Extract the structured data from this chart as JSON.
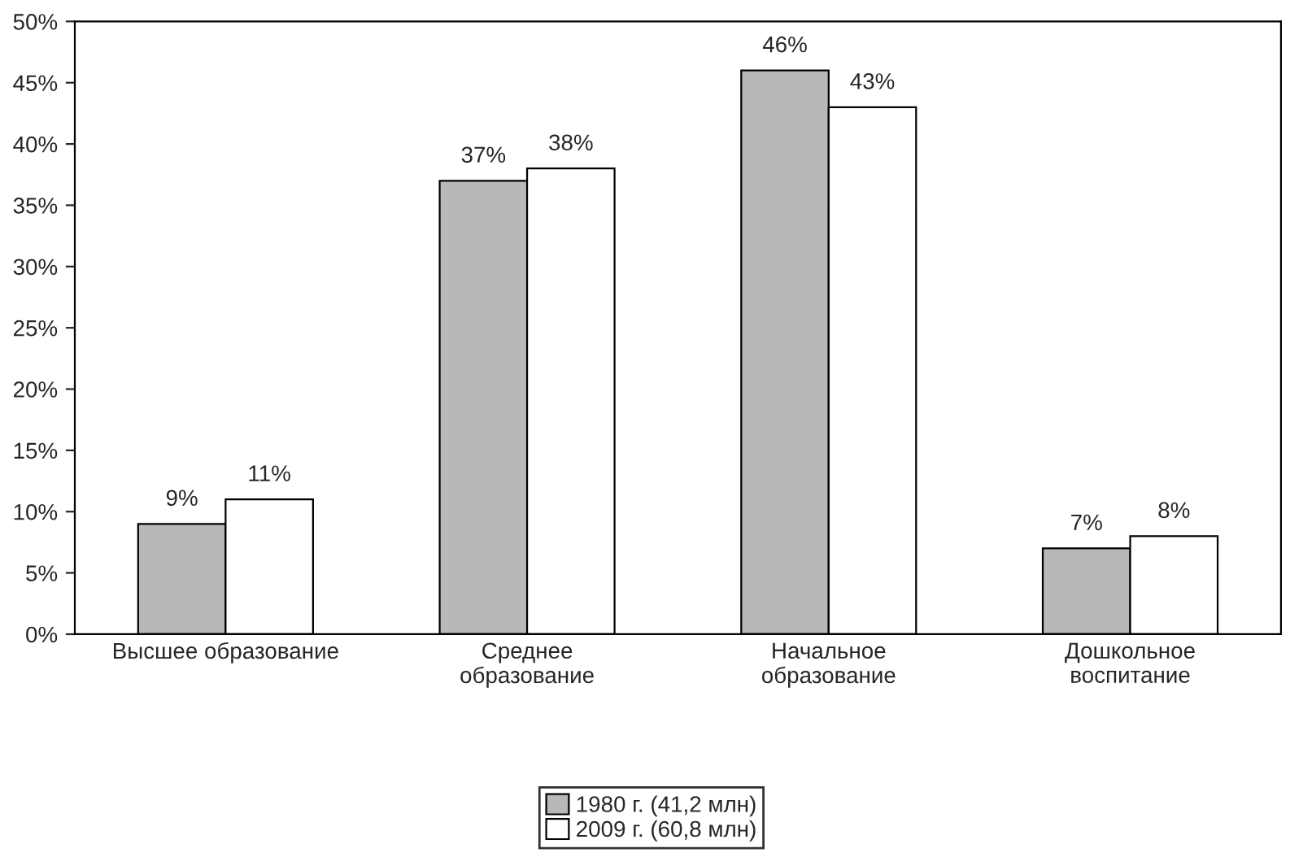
{
  "chart_data": {
    "type": "bar",
    "categories": [
      "Высшее образование",
      "Среднее\nобразование",
      "Начальное\nобразование",
      "Дошкольное\nвоспитание"
    ],
    "series": [
      {
        "name": "1980 г. (41,2 млн)",
        "color": "#b8b8b8",
        "values": [
          9,
          37,
          46,
          7
        ],
        "value_labels": [
          "9%",
          "37%",
          "46%",
          "7%"
        ]
      },
      {
        "name": "2009 г. (60,8 млн)",
        "color": "#ffffff",
        "values": [
          11,
          38,
          43,
          8
        ],
        "value_labels": [
          "11%",
          "38%",
          "43%",
          "8%"
        ]
      }
    ],
    "ylim": [
      0,
      50
    ],
    "yticks": [
      {
        "value": 0,
        "label": "0%"
      },
      {
        "value": 5,
        "label": "5%"
      },
      {
        "value": 10,
        "label": "10%"
      },
      {
        "value": 15,
        "label": "15%"
      },
      {
        "value": 20,
        "label": "20%"
      },
      {
        "value": 25,
        "label": "25%"
      },
      {
        "value": 30,
        "label": "30%"
      },
      {
        "value": 35,
        "label": "35%"
      },
      {
        "value": 40,
        "label": "40%"
      },
      {
        "value": 45,
        "label": "45%"
      },
      {
        "value": 50,
        "label": "50%"
      }
    ],
    "grid": false,
    "legend": "bottom"
  }
}
